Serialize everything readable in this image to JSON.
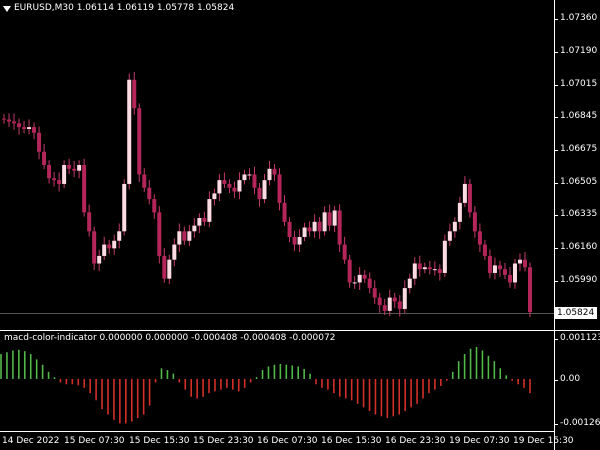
{
  "chart": {
    "symbol_label": "EURUSD,M30",
    "ohlc": "1.06114 1.06119 1.05778 1.05824",
    "current_price": "1.05824"
  },
  "price_axis": [
    "1.07360",
    "1.07190",
    "1.07015",
    "1.06845",
    "1.06675",
    "1.06505",
    "1.06335",
    "1.06160",
    "1.05990"
  ],
  "indicator": {
    "name": "macd-color-indicator",
    "values": "0.000000 0.000000 -0.000408 -0.000408 -0.000072",
    "axis": [
      "0.001123",
      "0.00",
      "-0.001267"
    ]
  },
  "time_axis": [
    "14 Dec 2022",
    "15 Dec 07:30",
    "15 Dec 15:30",
    "15 Dec 23:30",
    "16 Dec 07:30",
    "16 Dec 15:30",
    "16 Dec 23:30",
    "19 Dec 07:30",
    "19 Dec 15:30"
  ],
  "colors": {
    "bull": "#ffdbe4",
    "bear": "#b4265a",
    "wick": "#c23b6c",
    "hist_up": "#52b84a",
    "hist_down": "#d3302a",
    "frame": "#ffffff",
    "background": "#000000"
  },
  "chart_data": [
    {
      "type": "candlestick",
      "ylim": [
        1.0575,
        1.0745
      ],
      "close": [
        1.0684,
        1.0683,
        1.0682,
        1.068,
        1.0679,
        1.068,
        1.0677,
        1.0667,
        1.066,
        1.0653,
        1.0652,
        1.065,
        1.066,
        1.0658,
        1.0657,
        1.066,
        1.0635,
        1.0625,
        1.0608,
        1.0612,
        1.0618,
        1.0616,
        1.062,
        1.0625,
        1.065,
        1.0705,
        1.069,
        1.0655,
        1.0648,
        1.0642,
        1.0635,
        1.0612,
        1.06,
        1.061,
        1.0618,
        1.0625,
        1.062,
        1.0625,
        1.0628,
        1.0632,
        1.063,
        1.0642,
        1.0645,
        1.0652,
        1.065,
        1.0648,
        1.0646,
        1.0652,
        1.0655,
        1.0655,
        1.0648,
        1.0642,
        1.0652,
        1.0658,
        1.0655,
        1.064,
        1.063,
        1.0622,
        1.0618,
        1.0622,
        1.0627,
        1.0625,
        1.063,
        1.0625,
        1.0635,
        1.0628,
        1.0636,
        1.0618,
        1.061,
        1.0598,
        1.0598,
        1.0602,
        1.06,
        1.0595,
        1.059,
        1.0586,
        1.0583,
        1.059,
        1.0588,
        1.0584,
        1.0595,
        1.06,
        1.0608,
        1.0605,
        1.0606,
        1.0605,
        1.0605,
        1.0603,
        1.062,
        1.0625,
        1.063,
        1.064,
        1.065,
        1.0635,
        1.0625,
        1.0618,
        1.0612,
        1.0603,
        1.0607,
        1.0605,
        1.0602,
        1.0598,
        1.0608,
        1.061,
        1.0606,
        1.05824
      ]
    },
    {
      "type": "bar",
      "ylim": [
        -0.001267,
        0.001123
      ],
      "values": [
        0.0007,
        0.00075,
        0.0008,
        0.00082,
        0.00078,
        0.0007,
        0.00055,
        0.0004,
        0.0002,
        5e-05,
        -0.0001,
        -0.00015,
        -0.00015,
        -0.00018,
        -0.00025,
        -0.0004,
        -0.0006,
        -0.00085,
        -0.001,
        -0.00115,
        -0.00125,
        -0.00125,
        -0.0012,
        -0.0011,
        -0.001,
        -0.00075,
        -0.0001,
        0.0003,
        0.00025,
        0.00015,
        -0.0001,
        -0.0003,
        -0.0005,
        -0.00055,
        -0.0005,
        -0.0004,
        -0.00035,
        -0.0003,
        -0.00025,
        -0.0003,
        -0.00035,
        -0.00025,
        -0.0001,
        5e-05,
        0.00025,
        0.00035,
        0.0004,
        0.00042,
        0.0004,
        0.00038,
        0.00035,
        0.00028,
        0.00015,
        -0.00015,
        -0.00025,
        -0.0003,
        -0.0004,
        -0.0005,
        -0.00055,
        -0.0006,
        -0.0007,
        -0.0008,
        -0.0009,
        -0.001,
        -0.00105,
        -0.0011,
        -0.00105,
        -0.001,
        -0.0009,
        -0.0008,
        -0.0007,
        -0.00055,
        -0.0004,
        -0.0003,
        -0.0002,
        -5e-05,
        0.0002,
        0.0005,
        0.0007,
        0.00085,
        0.0009,
        0.0008,
        0.00065,
        0.0005,
        0.0003,
        0.0001,
        -5e-05,
        -0.00015,
        -0.00025,
        -0.0004
      ]
    }
  ]
}
